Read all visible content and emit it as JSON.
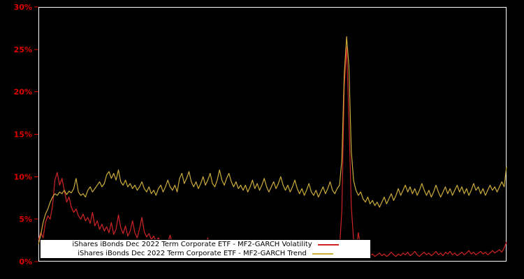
{
  "colors": {
    "background": "#000000",
    "plot_border": "#ffffff",
    "axis_tick": "#e00000",
    "axis_label": "#e00000",
    "legend_background": "#ffffff",
    "legend_text": "#000000"
  },
  "chart_data": {
    "type": "line",
    "title": "",
    "xlabel": "",
    "ylabel": "",
    "ylim": [
      0,
      30
    ],
    "yticks": [
      0,
      5,
      10,
      15,
      20,
      25,
      30
    ],
    "ytick_labels": [
      "0%",
      "5%",
      "10%",
      "15%",
      "20%",
      "25%",
      "30%"
    ],
    "x_axis_note": "time index, no x tick labels shown",
    "grid": false,
    "legend_position": "bottom-left",
    "series": [
      {
        "name": "iShares iBonds Dec 2022 Term Corporate ETF - MF2-GARCH Volatility",
        "color": "#d02424",
        "values": [
          2.5,
          3.4,
          2.8,
          4.6,
          5.4,
          5.0,
          6.6,
          9.6,
          10.5,
          9.0,
          9.8,
          8.4,
          7.0,
          7.6,
          6.4,
          5.8,
          6.2,
          5.4,
          5.0,
          5.6,
          4.8,
          5.2,
          4.5,
          5.8,
          4.2,
          4.8,
          3.8,
          4.4,
          3.6,
          4.1,
          3.4,
          4.6,
          3.2,
          3.8,
          5.5,
          4.0,
          3.3,
          4.2,
          3.0,
          3.6,
          4.8,
          3.4,
          2.8,
          3.9,
          5.2,
          3.5,
          2.9,
          3.3,
          2.6,
          3.0,
          2.4,
          2.8,
          2.2,
          2.6,
          1.9,
          2.3,
          3.1,
          2.0,
          1.7,
          2.1,
          1.6,
          2.4,
          1.5,
          1.9,
          1.4,
          1.8,
          2.6,
          1.5,
          1.2,
          1.6,
          1.1,
          1.5,
          2.8,
          1.3,
          1.0,
          1.4,
          0.9,
          1.3,
          1.8,
          1.1,
          0.9,
          1.2,
          1.6,
          1.0,
          0.8,
          1.1,
          0.9,
          1.3,
          0.8,
          1.0,
          0.7,
          1.1,
          0.9,
          1.2,
          0.8,
          1.0,
          1.4,
          0.9,
          0.7,
          1.0,
          0.8,
          1.1,
          0.7,
          0.9,
          1.2,
          0.8,
          1.0,
          0.7,
          0.9,
          1.1,
          0.8,
          1.0,
          0.9,
          1.2,
          0.8,
          1.0,
          0.9,
          1.1,
          0.8,
          1.0,
          1.3,
          0.9,
          0.8,
          1.1,
          0.9,
          1.2,
          0.8,
          1.0,
          1.6,
          6.0,
          20.5,
          25.3,
          17.0,
          6.5,
          2.4,
          1.2,
          3.4,
          1.6,
          1.0,
          0.8,
          1.0,
          0.7,
          0.9,
          0.6,
          0.8,
          1.0,
          0.7,
          0.9,
          0.6,
          0.8,
          1.1,
          0.8,
          0.6,
          0.9,
          0.7,
          1.0,
          0.8,
          1.1,
          0.7,
          0.9,
          1.2,
          0.8,
          0.6,
          0.9,
          1.1,
          0.8,
          1.0,
          0.7,
          0.9,
          1.2,
          0.8,
          1.0,
          0.7,
          1.1,
          0.9,
          1.2,
          0.8,
          1.0,
          0.7,
          0.9,
          1.1,
          0.8,
          1.0,
          1.3,
          0.9,
          1.1,
          0.8,
          1.0,
          1.2,
          0.9,
          1.1,
          0.8,
          1.0,
          1.3,
          1.0,
          1.2,
          1.4,
          1.1,
          1.6,
          2.3
        ]
      },
      {
        "name": "iShares iBonds Dec 2022 Term Corporate ETF - MF2-GARCH Trend",
        "color": "#ccac3c",
        "values": [
          2.0,
          3.2,
          4.6,
          5.6,
          6.2,
          7.0,
          7.6,
          8.0,
          7.8,
          8.2,
          8.0,
          8.4,
          7.9,
          8.3,
          8.1,
          8.6,
          9.8,
          8.2,
          7.8,
          8.0,
          7.6,
          8.4,
          8.8,
          8.2,
          8.6,
          9.0,
          9.4,
          8.8,
          9.2,
          10.2,
          10.6,
          9.8,
          10.4,
          9.6,
          10.8,
          9.4,
          9.0,
          9.6,
          8.8,
          9.2,
          8.6,
          9.0,
          8.4,
          8.8,
          9.4,
          8.6,
          8.2,
          8.8,
          8.0,
          8.4,
          7.8,
          8.6,
          9.0,
          8.2,
          8.8,
          9.6,
          8.8,
          8.4,
          9.0,
          8.2,
          9.8,
          10.4,
          9.2,
          9.8,
          10.6,
          9.4,
          8.8,
          9.4,
          8.6,
          9.2,
          10.0,
          9.0,
          9.6,
          10.4,
          9.2,
          8.8,
          9.6,
          10.8,
          9.6,
          9.0,
          9.8,
          10.4,
          9.4,
          8.8,
          9.4,
          8.6,
          9.0,
          8.4,
          9.0,
          8.2,
          8.8,
          9.6,
          8.6,
          9.2,
          8.4,
          9.0,
          9.8,
          8.8,
          8.2,
          8.8,
          9.4,
          8.6,
          9.2,
          10.0,
          9.0,
          8.4,
          9.0,
          8.2,
          8.8,
          9.6,
          8.6,
          8.0,
          8.6,
          7.8,
          8.4,
          9.2,
          8.2,
          7.8,
          8.4,
          7.6,
          8.2,
          8.8,
          8.0,
          8.6,
          9.4,
          8.4,
          8.0,
          8.6,
          9.0,
          12.0,
          22.0,
          26.5,
          23.0,
          13.0,
          9.5,
          8.4,
          7.8,
          8.2,
          7.4,
          7.0,
          7.6,
          6.8,
          7.2,
          6.6,
          7.0,
          6.4,
          7.0,
          7.6,
          6.8,
          7.4,
          8.0,
          7.2,
          7.8,
          8.6,
          7.8,
          8.4,
          9.0,
          8.2,
          8.8,
          8.0,
          8.6,
          7.8,
          8.4,
          9.2,
          8.4,
          7.8,
          8.4,
          7.6,
          8.2,
          9.0,
          8.2,
          7.6,
          8.2,
          8.8,
          8.0,
          8.6,
          7.8,
          8.4,
          9.0,
          8.2,
          8.8,
          8.0,
          8.6,
          7.8,
          8.4,
          9.2,
          8.4,
          8.8,
          8.0,
          8.6,
          7.8,
          8.4,
          9.0,
          8.4,
          8.8,
          8.2,
          8.8,
          9.4,
          8.8,
          11.2
        ]
      }
    ]
  }
}
